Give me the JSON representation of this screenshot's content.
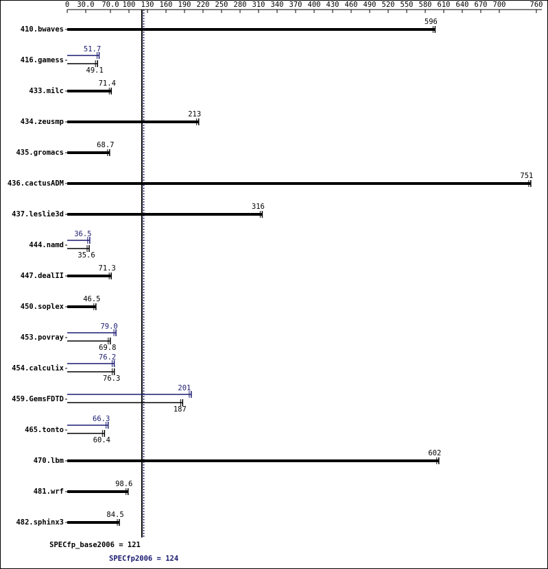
{
  "chart_data": {
    "type": "bar",
    "categories": [
      "410.bwaves",
      "416.gamess",
      "433.milc",
      "434.zeusmp",
      "435.gromacs",
      "436.cactusADM",
      "437.leslie3d",
      "444.namd",
      "447.dealII",
      "450.soplex",
      "453.povray",
      "454.calculix",
      "459.GemsFDTD",
      "465.tonto",
      "470.lbm",
      "481.wrf",
      "482.sphinx3"
    ],
    "series": [
      {
        "color": "#000000",
        "values": [
          596,
          49.1,
          71.4,
          213,
          68.7,
          751,
          316,
          35.6,
          71.3,
          46.5,
          69.8,
          76.3,
          187,
          60.4,
          602,
          98.6,
          84.5
        ]
      },
      {
        "color": "#191970",
        "values": [
          null,
          51.7,
          null,
          null,
          null,
          null,
          null,
          36.5,
          null,
          null,
          79,
          76.2,
          201,
          66.3,
          null,
          null,
          null
        ],
        "value_labels": [
          null,
          "51.7",
          null,
          null,
          null,
          null,
          null,
          "36.5",
          null,
          null,
          "79.0",
          "76.2",
          "201",
          "66.3",
          null,
          null,
          null
        ]
      }
    ],
    "xlim": [
      0,
      760
    ],
    "xticks": [
      0,
      {
        "value": 30,
        "label": "30.0"
      },
      {
        "value": 70,
        "label": "70.0"
      },
      100,
      130,
      160,
      190,
      220,
      250,
      280,
      310,
      340,
      370,
      400,
      430,
      460,
      490,
      520,
      550,
      580,
      610,
      640,
      670,
      700,
      760
    ],
    "reference_lines": [
      {
        "label": "SPECfp_base2006 = 121",
        "value": 121,
        "color": "#000000"
      },
      {
        "label": "SPECfp2006 = 124",
        "value": 124,
        "color": "#191970"
      }
    ]
  }
}
